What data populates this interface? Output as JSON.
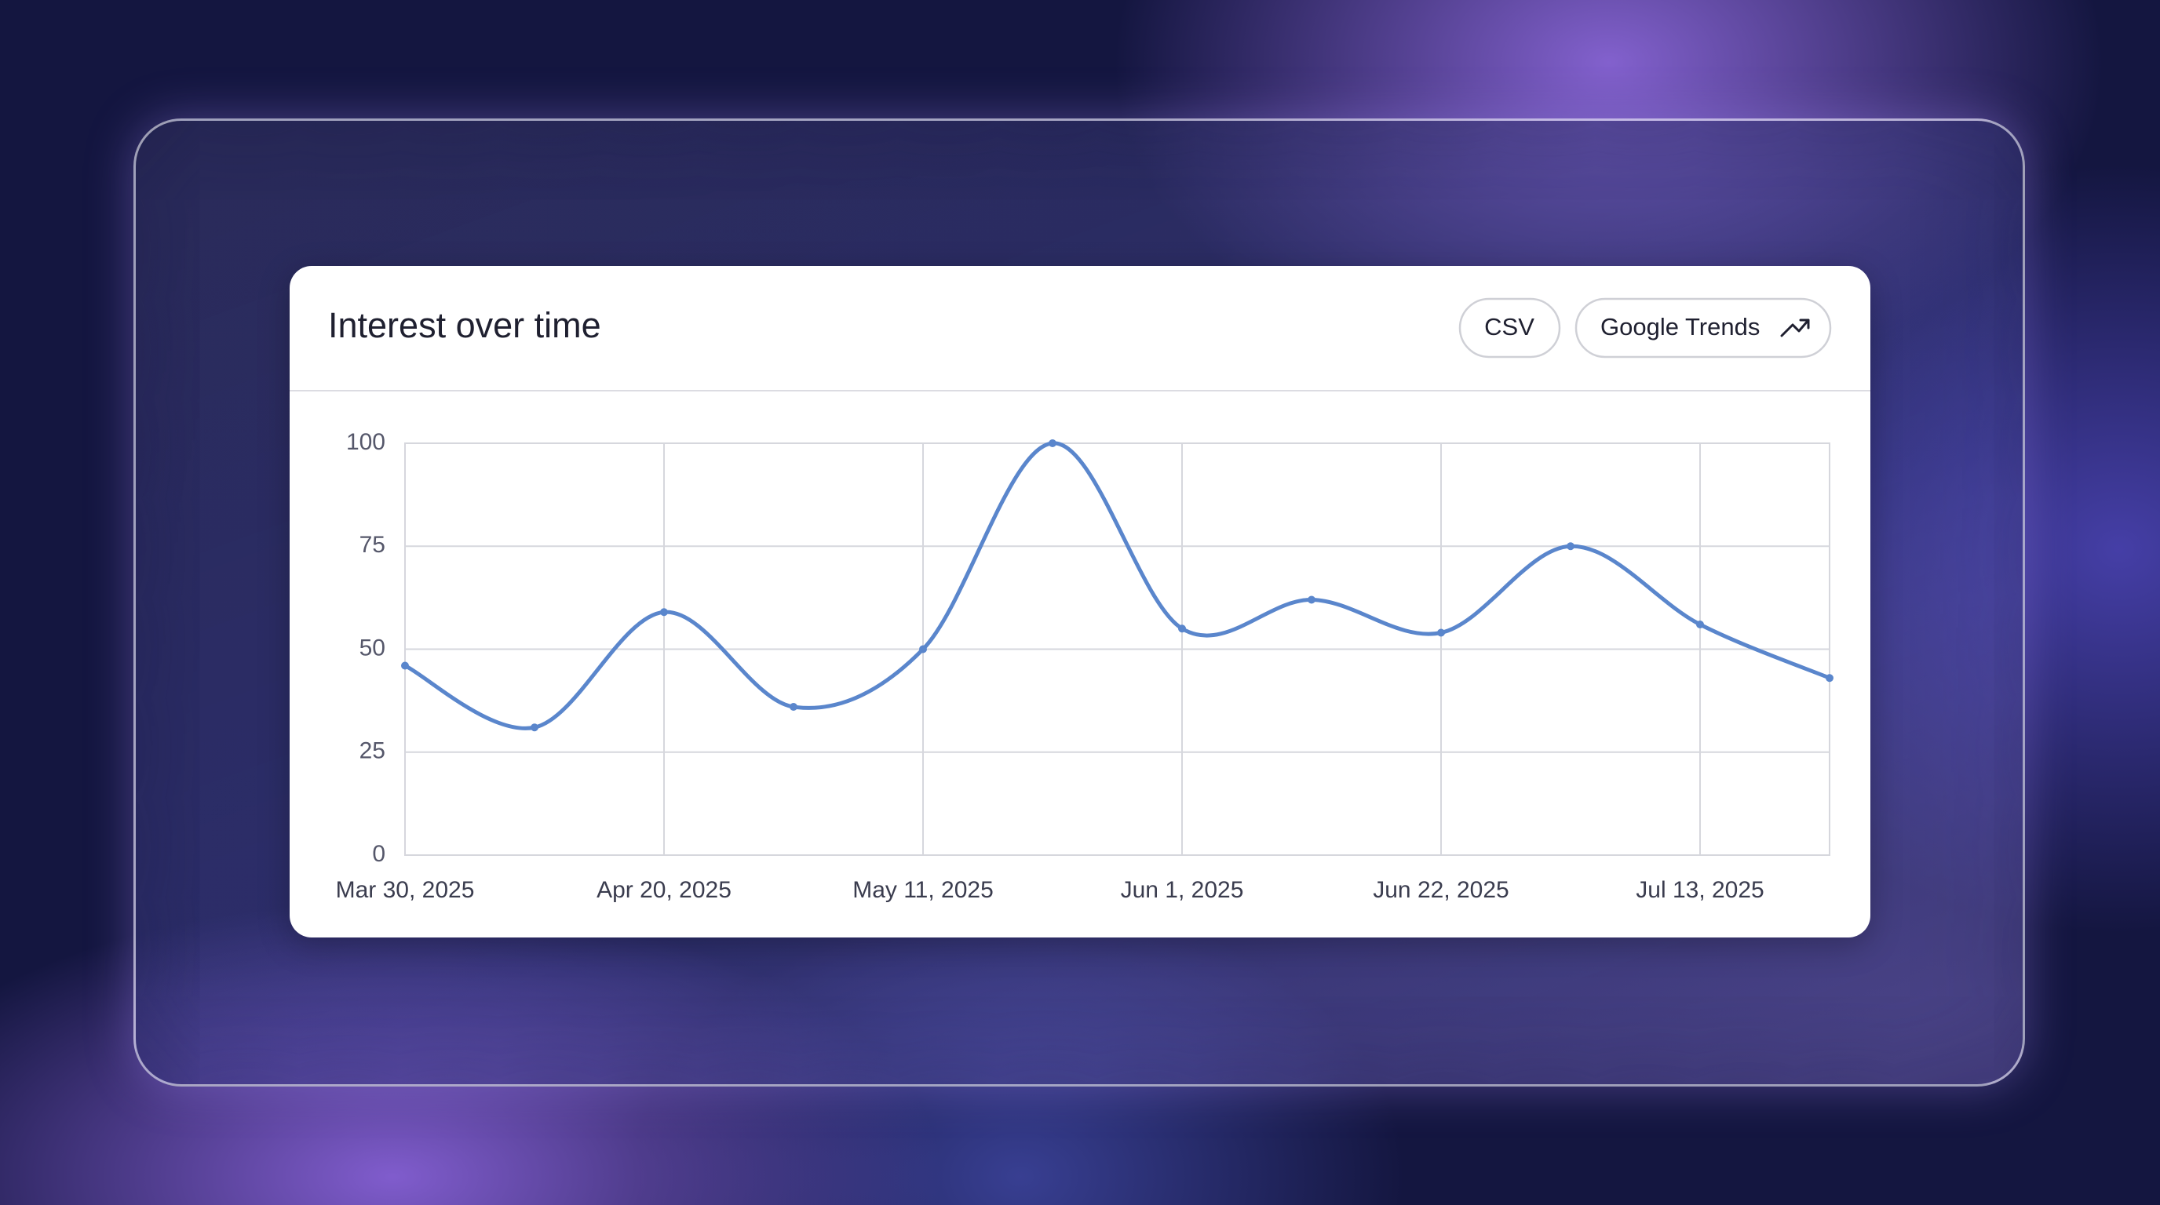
{
  "header": {
    "title": "Interest over time",
    "buttons": [
      "CSV",
      "Google Trends"
    ]
  },
  "chart_data": {
    "type": "line",
    "categories": [
      "Mar 30, 2025",
      null,
      "Apr 20, 2025",
      null,
      "May 11, 2025",
      null,
      "Jun 1, 2025",
      null,
      "Jun 22, 2025",
      null,
      "Jul 13, 2025",
      null
    ],
    "series": [
      {
        "name": "Interest",
        "color": "#5a86cc",
        "values": [
          46,
          31,
          59,
          36,
          50,
          100,
          55,
          62,
          54,
          75,
          56,
          43
        ]
      }
    ],
    "ylim": [
      0,
      100
    ],
    "yticks": [
      0,
      25,
      50,
      75,
      100
    ],
    "grid": true
  }
}
